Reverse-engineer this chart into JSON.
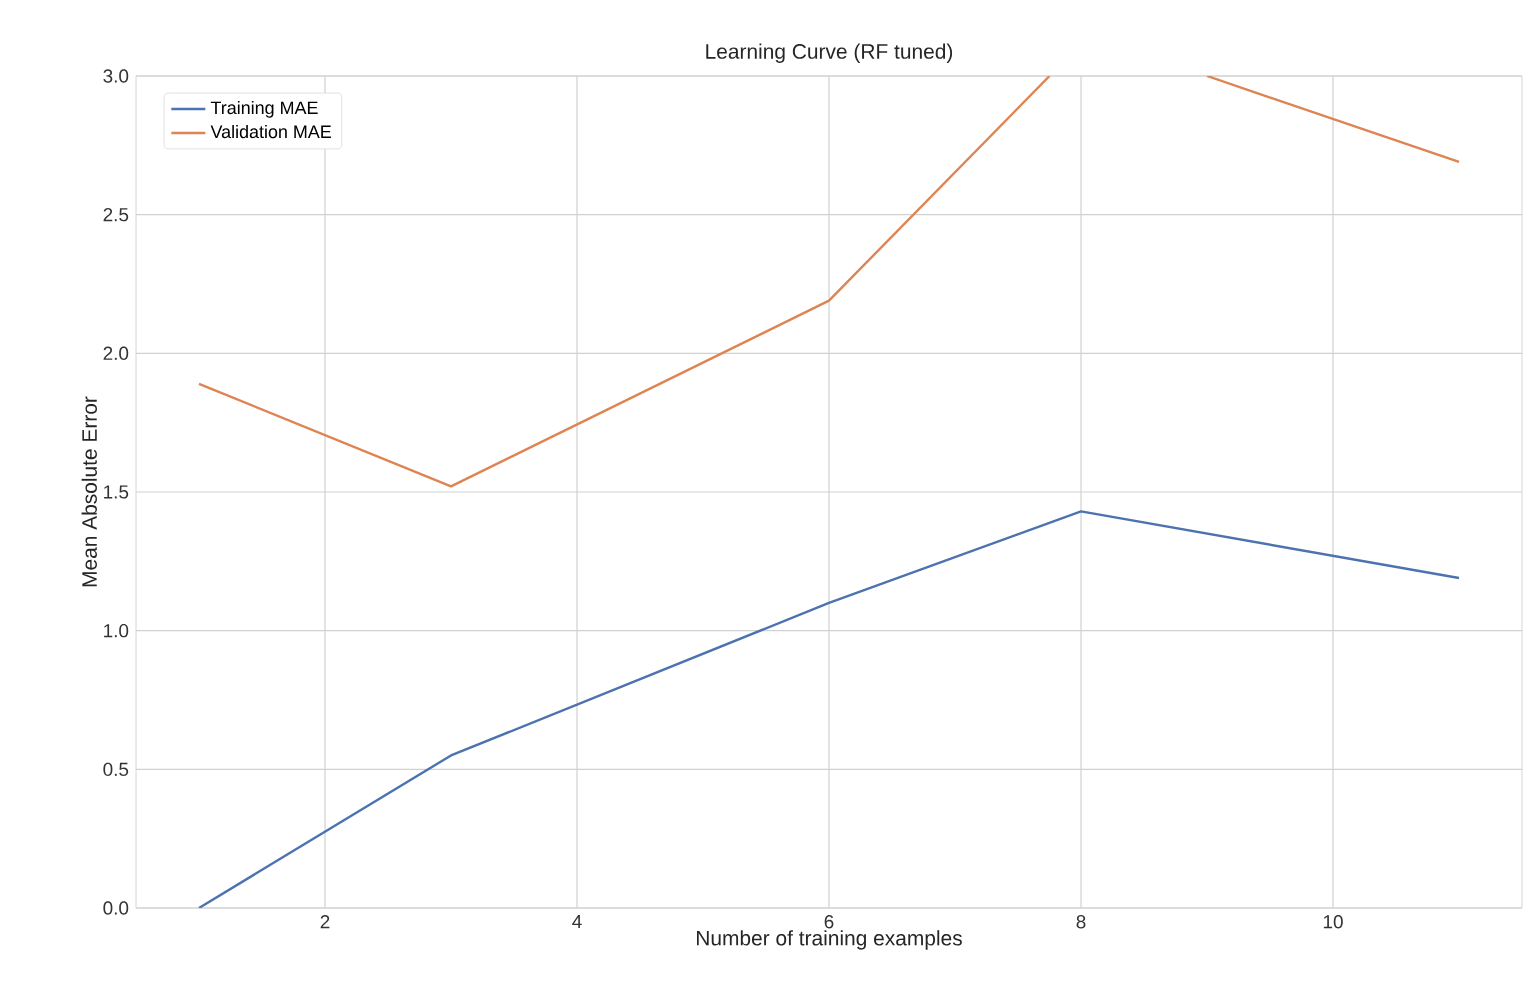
{
  "chart_data": {
    "type": "line",
    "title": "Learning Curve (RF tuned)",
    "xlabel": "Number of training examples",
    "ylabel": "Mean Absolute Error",
    "x": [
      1,
      3,
      6,
      8,
      11
    ],
    "series": [
      {
        "name": "Training MAE",
        "color": "#4c72b0",
        "values": [
          0.0,
          0.55,
          1.1,
          1.43,
          1.19
        ]
      },
      {
        "name": "Validation MAE",
        "color": "#dd8452",
        "x": [
          1,
          3,
          6,
          7.75,
          8,
          9,
          11
        ],
        "values": [
          1.89,
          1.52,
          2.19,
          3.0,
          null,
          3.0,
          2.69
        ]
      }
    ],
    "xlim": [
      0.5,
      11.5
    ],
    "ylim": [
      0,
      3
    ],
    "xticks": [
      2,
      4,
      6,
      8,
      10
    ],
    "yticks": [
      {
        "value": 0,
        "label": "0.0"
      },
      {
        "value": 0.5,
        "label": "0.5"
      },
      {
        "value": 1,
        "label": "1.0"
      },
      {
        "value": 1.5,
        "label": "1.5"
      },
      {
        "value": 2,
        "label": "2.0"
      },
      {
        "value": 2.5,
        "label": "2.5"
      },
      {
        "value": 3,
        "label": "3.0"
      }
    ],
    "grid": true,
    "legend": "top left",
    "marker": "none",
    "line_style": "solid"
  }
}
